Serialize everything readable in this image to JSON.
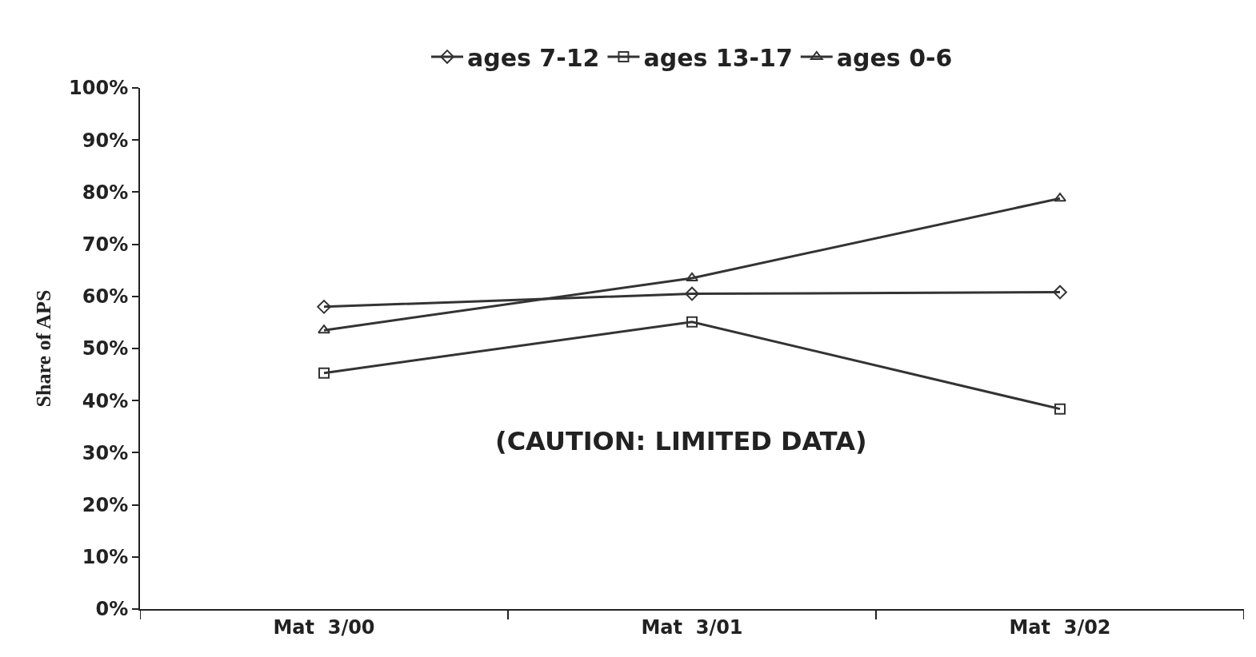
{
  "chart_data": {
    "type": "line",
    "ylabel": "Share of APS",
    "categories": [
      "Mat  3/00",
      "Mat  3/01",
      "Mat  3/02"
    ],
    "series": [
      {
        "name": "ages 7-12",
        "color": "#333333",
        "marker": "diamond",
        "values": [
          58.0,
          60.5,
          60.8
        ]
      },
      {
        "name": "ages 13-17",
        "color": "#333333",
        "marker": "square",
        "values": [
          45.3,
          55.1,
          38.4
        ]
      },
      {
        "name": "ages 0-6",
        "color": "#333333",
        "marker": "triangle",
        "values": [
          53.5,
          63.5,
          78.8
        ]
      }
    ],
    "ylim": [
      0,
      100
    ],
    "yticks": [
      {
        "value": 0,
        "label": "0%"
      },
      {
        "value": 10,
        "label": "10%"
      },
      {
        "value": 20,
        "label": "20%"
      },
      {
        "value": 30,
        "label": "30%"
      },
      {
        "value": 40,
        "label": "40%"
      },
      {
        "value": 50,
        "label": "50%"
      },
      {
        "value": 60,
        "label": "60%"
      },
      {
        "value": 70,
        "label": "70%"
      },
      {
        "value": 80,
        "label": "80%"
      },
      {
        "value": 90,
        "label": "90%"
      },
      {
        "value": 100,
        "label": "100%"
      }
    ],
    "annotations": [
      "(CAUTION: LIMITED DATA)"
    ],
    "legend": "top",
    "line_style": "solid"
  }
}
